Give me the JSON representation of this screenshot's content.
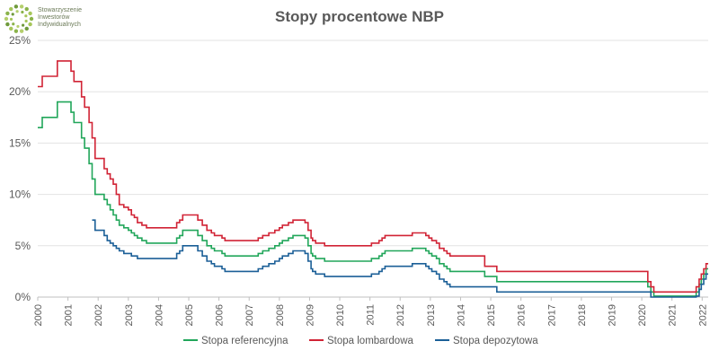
{
  "logo": {
    "lines": [
      "Stowarzyszenie",
      "Inwestorów",
      "Indywidualnych"
    ],
    "icon": "dotted-circle-logo-icon"
  },
  "chart_data": {
    "type": "line",
    "title": "Stopy procentowe NBP",
    "xlabel": "",
    "ylabel": "",
    "xlim": [
      2000,
      2022.2
    ],
    "ylim": [
      0,
      25
    ],
    "x_ticks": [
      "2000",
      "2001",
      "2002",
      "2003",
      "2004",
      "2005",
      "2006",
      "2007",
      "2008",
      "2009",
      "2010",
      "2011",
      "2012",
      "2013",
      "2014",
      "2015",
      "2016",
      "2017",
      "2018",
      "2019",
      "2020",
      "2021",
      "2022"
    ],
    "y_ticks": [
      "0%",
      "5%",
      "10%",
      "15%",
      "20%",
      "25%"
    ],
    "grid": "horizontal",
    "legend_position": "bottom",
    "series": [
      {
        "name": "Stopa referencyjna",
        "color": "#21a65a",
        "points": [
          [
            2000.0,
            16.5
          ],
          [
            2000.15,
            17.5
          ],
          [
            2000.65,
            19.0
          ],
          [
            2001.1,
            18.0
          ],
          [
            2001.2,
            17.0
          ],
          [
            2001.45,
            15.5
          ],
          [
            2001.55,
            14.5
          ],
          [
            2001.7,
            13.0
          ],
          [
            2001.8,
            11.5
          ],
          [
            2001.9,
            10.0
          ],
          [
            2002.1,
            10.0
          ],
          [
            2002.2,
            9.5
          ],
          [
            2002.3,
            9.0
          ],
          [
            2002.4,
            8.5
          ],
          [
            2002.5,
            8.0
          ],
          [
            2002.6,
            7.5
          ],
          [
            2002.7,
            7.0
          ],
          [
            2002.85,
            6.75
          ],
          [
            2003.0,
            6.5
          ],
          [
            2003.1,
            6.25
          ],
          [
            2003.2,
            6.0
          ],
          [
            2003.3,
            5.75
          ],
          [
            2003.45,
            5.5
          ],
          [
            2003.6,
            5.25
          ],
          [
            2004.5,
            5.25
          ],
          [
            2004.6,
            5.75
          ],
          [
            2004.7,
            6.0
          ],
          [
            2004.8,
            6.5
          ],
          [
            2005.3,
            6.0
          ],
          [
            2005.45,
            5.5
          ],
          [
            2005.6,
            5.0
          ],
          [
            2005.75,
            4.75
          ],
          [
            2005.85,
            4.5
          ],
          [
            2006.1,
            4.25
          ],
          [
            2006.2,
            4.0
          ],
          [
            2007.3,
            4.25
          ],
          [
            2007.45,
            4.5
          ],
          [
            2007.65,
            4.75
          ],
          [
            2007.85,
            5.0
          ],
          [
            2008.0,
            5.25
          ],
          [
            2008.1,
            5.5
          ],
          [
            2008.3,
            5.75
          ],
          [
            2008.45,
            6.0
          ],
          [
            2008.85,
            5.75
          ],
          [
            2008.95,
            5.0
          ],
          [
            2009.05,
            4.25
          ],
          [
            2009.1,
            4.0
          ],
          [
            2009.2,
            3.75
          ],
          [
            2009.5,
            3.5
          ],
          [
            2011.05,
            3.75
          ],
          [
            2011.3,
            4.0
          ],
          [
            2011.4,
            4.25
          ],
          [
            2011.5,
            4.5
          ],
          [
            2012.4,
            4.75
          ],
          [
            2012.85,
            4.5
          ],
          [
            2012.95,
            4.25
          ],
          [
            2013.05,
            4.0
          ],
          [
            2013.2,
            3.75
          ],
          [
            2013.3,
            3.25
          ],
          [
            2013.45,
            3.0
          ],
          [
            2013.55,
            2.75
          ],
          [
            2013.65,
            2.5
          ],
          [
            2014.8,
            2.0
          ],
          [
            2015.2,
            1.5
          ],
          [
            2020.2,
            1.0
          ],
          [
            2020.3,
            0.5
          ],
          [
            2020.4,
            0.1
          ],
          [
            2021.8,
            0.5
          ],
          [
            2021.9,
            1.25
          ],
          [
            2021.97,
            1.75
          ],
          [
            2022.05,
            2.25
          ],
          [
            2022.13,
            2.75
          ],
          [
            2022.2,
            2.75
          ]
        ]
      },
      {
        "name": "Stopa lombardowa",
        "color": "#d12335",
        "points": [
          [
            2000.0,
            20.5
          ],
          [
            2000.15,
            21.5
          ],
          [
            2000.65,
            23.0
          ],
          [
            2001.1,
            22.0
          ],
          [
            2001.2,
            21.0
          ],
          [
            2001.45,
            19.5
          ],
          [
            2001.55,
            18.5
          ],
          [
            2001.7,
            17.0
          ],
          [
            2001.8,
            15.5
          ],
          [
            2001.9,
            13.5
          ],
          [
            2002.1,
            13.5
          ],
          [
            2002.2,
            12.5
          ],
          [
            2002.3,
            12.0
          ],
          [
            2002.4,
            11.5
          ],
          [
            2002.5,
            11.0
          ],
          [
            2002.6,
            10.0
          ],
          [
            2002.7,
            9.0
          ],
          [
            2002.85,
            8.75
          ],
          [
            2003.0,
            8.5
          ],
          [
            2003.1,
            8.0
          ],
          [
            2003.2,
            7.75
          ],
          [
            2003.3,
            7.25
          ],
          [
            2003.45,
            7.0
          ],
          [
            2003.6,
            6.75
          ],
          [
            2004.5,
            6.75
          ],
          [
            2004.6,
            7.25
          ],
          [
            2004.7,
            7.5
          ],
          [
            2004.8,
            8.0
          ],
          [
            2005.3,
            7.5
          ],
          [
            2005.45,
            7.0
          ],
          [
            2005.6,
            6.5
          ],
          [
            2005.75,
            6.25
          ],
          [
            2005.85,
            6.0
          ],
          [
            2006.1,
            5.75
          ],
          [
            2006.2,
            5.5
          ],
          [
            2007.3,
            5.75
          ],
          [
            2007.45,
            6.0
          ],
          [
            2007.65,
            6.25
          ],
          [
            2007.85,
            6.5
          ],
          [
            2008.0,
            6.75
          ],
          [
            2008.1,
            7.0
          ],
          [
            2008.3,
            7.25
          ],
          [
            2008.45,
            7.5
          ],
          [
            2008.85,
            7.25
          ],
          [
            2008.95,
            6.5
          ],
          [
            2009.05,
            5.75
          ],
          [
            2009.1,
            5.5
          ],
          [
            2009.2,
            5.25
          ],
          [
            2009.5,
            5.0
          ],
          [
            2011.05,
            5.25
          ],
          [
            2011.3,
            5.5
          ],
          [
            2011.4,
            5.75
          ],
          [
            2011.5,
            6.0
          ],
          [
            2012.4,
            6.25
          ],
          [
            2012.85,
            6.0
          ],
          [
            2012.95,
            5.75
          ],
          [
            2013.05,
            5.5
          ],
          [
            2013.2,
            5.25
          ],
          [
            2013.3,
            4.75
          ],
          [
            2013.45,
            4.5
          ],
          [
            2013.55,
            4.25
          ],
          [
            2013.65,
            4.0
          ],
          [
            2014.8,
            3.0
          ],
          [
            2015.2,
            2.5
          ],
          [
            2020.2,
            1.5
          ],
          [
            2020.3,
            1.0
          ],
          [
            2020.4,
            0.5
          ],
          [
            2021.8,
            1.0
          ],
          [
            2021.9,
            1.75
          ],
          [
            2021.97,
            2.25
          ],
          [
            2022.05,
            2.75
          ],
          [
            2022.13,
            3.25
          ],
          [
            2022.2,
            3.25
          ]
        ]
      },
      {
        "name": "Stopa depozytowa",
        "color": "#1b5f97",
        "points": [
          [
            2001.8,
            7.5
          ],
          [
            2001.9,
            6.5
          ],
          [
            2002.1,
            6.5
          ],
          [
            2002.2,
            6.0
          ],
          [
            2002.3,
            5.5
          ],
          [
            2002.4,
            5.25
          ],
          [
            2002.5,
            5.0
          ],
          [
            2002.6,
            4.75
          ],
          [
            2002.7,
            4.5
          ],
          [
            2002.85,
            4.25
          ],
          [
            2003.0,
            4.25
          ],
          [
            2003.1,
            4.0
          ],
          [
            2003.2,
            4.0
          ],
          [
            2003.3,
            3.75
          ],
          [
            2004.5,
            3.75
          ],
          [
            2004.6,
            4.25
          ],
          [
            2004.7,
            4.5
          ],
          [
            2004.8,
            5.0
          ],
          [
            2005.3,
            4.5
          ],
          [
            2005.45,
            4.0
          ],
          [
            2005.6,
            3.5
          ],
          [
            2005.75,
            3.25
          ],
          [
            2005.85,
            3.0
          ],
          [
            2006.1,
            2.75
          ],
          [
            2006.2,
            2.5
          ],
          [
            2007.3,
            2.75
          ],
          [
            2007.45,
            3.0
          ],
          [
            2007.65,
            3.25
          ],
          [
            2007.85,
            3.5
          ],
          [
            2008.0,
            3.75
          ],
          [
            2008.1,
            4.0
          ],
          [
            2008.3,
            4.25
          ],
          [
            2008.45,
            4.5
          ],
          [
            2008.85,
            4.25
          ],
          [
            2008.95,
            3.5
          ],
          [
            2009.05,
            2.75
          ],
          [
            2009.1,
            2.5
          ],
          [
            2009.2,
            2.25
          ],
          [
            2009.5,
            2.0
          ],
          [
            2011.05,
            2.25
          ],
          [
            2011.3,
            2.5
          ],
          [
            2011.4,
            2.75
          ],
          [
            2011.5,
            3.0
          ],
          [
            2012.4,
            3.25
          ],
          [
            2012.85,
            3.0
          ],
          [
            2012.95,
            2.75
          ],
          [
            2013.05,
            2.5
          ],
          [
            2013.2,
            2.25
          ],
          [
            2013.3,
            1.75
          ],
          [
            2013.45,
            1.5
          ],
          [
            2013.55,
            1.25
          ],
          [
            2013.65,
            1.0
          ],
          [
            2014.8,
            1.0
          ],
          [
            2015.2,
            0.5
          ],
          [
            2020.2,
            0.5
          ],
          [
            2020.3,
            0.0
          ],
          [
            2020.4,
            0.0
          ],
          [
            2021.8,
            0.1
          ],
          [
            2021.9,
            0.75
          ],
          [
            2021.97,
            1.25
          ],
          [
            2022.05,
            1.75
          ],
          [
            2022.13,
            2.25
          ],
          [
            2022.2,
            2.25
          ]
        ]
      }
    ]
  }
}
